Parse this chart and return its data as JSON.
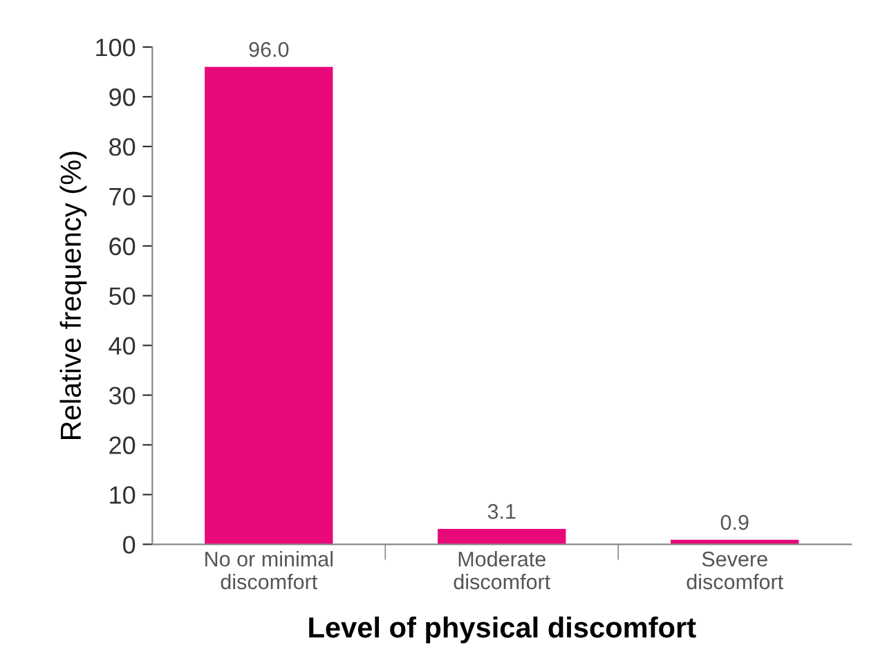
{
  "chart_data": {
    "type": "bar",
    "categories": [
      "No or minimal\ndiscomfort",
      "Moderate\ndiscomfort",
      "Severe\ndiscomfort"
    ],
    "values": [
      96.0,
      3.1,
      0.9
    ],
    "value_labels": [
      "96.0",
      "3.1",
      "0.9"
    ],
    "color": "#e8097a",
    "xlabel": "Level of physical discomfort",
    "ylabel": "Relative frequency (%)",
    "ylim": [
      0,
      100
    ],
    "yticks": [
      0,
      10,
      20,
      30,
      40,
      50,
      60,
      70,
      80,
      90,
      100
    ],
    "grid": false,
    "legend": false
  }
}
